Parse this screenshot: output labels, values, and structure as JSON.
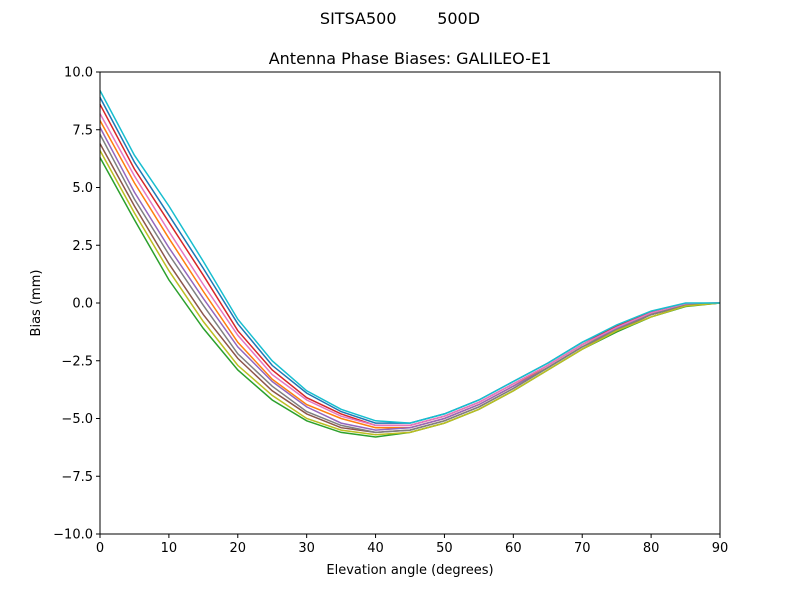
{
  "chart_data": {
    "type": "line",
    "suptitle": "SITSA500        500D",
    "title": "Antenna Phase Biases: GALILEO-E1",
    "xlabel": "Elevation angle (degrees)",
    "ylabel": "Bias (mm)",
    "xlim": [
      0,
      90
    ],
    "ylim": [
      -10,
      10
    ],
    "grid": false,
    "xticks": [
      0,
      10,
      20,
      30,
      40,
      50,
      60,
      70,
      80,
      90
    ],
    "xtick_labels": [
      "0",
      "10",
      "20",
      "30",
      "40",
      "50",
      "60",
      "70",
      "80",
      "90"
    ],
    "yticks": [
      -10,
      -7.5,
      -5,
      -2.5,
      0,
      2.5,
      5,
      7.5,
      10
    ],
    "ytick_labels": [
      "−10.0",
      "−7.5",
      "−5.0",
      "−2.5",
      "0.0",
      "2.5",
      "5.0",
      "7.5",
      "10.0"
    ],
    "x": [
      0,
      5,
      10,
      15,
      20,
      25,
      30,
      35,
      40,
      45,
      50,
      55,
      60,
      65,
      70,
      75,
      80,
      85,
      90
    ],
    "colors": [
      "#1f77b4",
      "#ff7f0e",
      "#2ca02c",
      "#d62728",
      "#9467bd",
      "#8c564b",
      "#e377c2",
      "#7f7f7f",
      "#bcbd22",
      "#17becf"
    ],
    "series": [
      {
        "values": [
          8.9,
          6.1,
          3.8,
          1.5,
          -0.9,
          -2.7,
          -3.9,
          -4.7,
          -5.2,
          -5.2,
          -4.8,
          -4.2,
          -3.4,
          -2.6,
          -1.7,
          -1.0,
          -0.38,
          -0.02,
          0
        ]
      },
      {
        "values": [
          7.9,
          5.2,
          2.8,
          0.5,
          -1.7,
          -3.3,
          -4.4,
          -5.0,
          -5.4,
          -5.4,
          -5.0,
          -4.4,
          -3.6,
          -2.7,
          -1.8,
          -1.1,
          -0.46,
          -0.07,
          0
        ]
      },
      {
        "values": [
          6.3,
          3.6,
          1.0,
          -1.1,
          -2.9,
          -4.2,
          -5.1,
          -5.6,
          -5.8,
          -5.6,
          -5.2,
          -4.6,
          -3.8,
          -2.9,
          -2.0,
          -1.25,
          -0.6,
          -0.15,
          0
        ]
      },
      {
        "values": [
          8.6,
          5.8,
          3.5,
          1.2,
          -1.2,
          -2.9,
          -4.1,
          -4.8,
          -5.3,
          -5.3,
          -4.9,
          -4.3,
          -3.5,
          -2.7,
          -1.8,
          -1.0,
          -0.4,
          -0.03,
          0
        ]
      },
      {
        "values": [
          7.6,
          4.8,
          2.4,
          0.2,
          -1.9,
          -3.4,
          -4.5,
          -5.2,
          -5.5,
          -5.4,
          -5.0,
          -4.4,
          -3.6,
          -2.8,
          -1.9,
          -1.1,
          -0.5,
          -0.08,
          0
        ]
      },
      {
        "values": [
          6.9,
          4.2,
          1.7,
          -0.5,
          -2.4,
          -3.8,
          -4.8,
          -5.4,
          -5.6,
          -5.5,
          -5.1,
          -4.5,
          -3.7,
          -2.8,
          -1.9,
          -1.2,
          -0.5,
          -0.12,
          0
        ]
      },
      {
        "values": [
          8.2,
          5.5,
          3.1,
          0.8,
          -1.4,
          -3.1,
          -4.2,
          -4.9,
          -5.3,
          -5.3,
          -4.9,
          -4.3,
          -3.5,
          -2.7,
          -1.8,
          -1.05,
          -0.43,
          -0.05,
          0
        ]
      },
      {
        "values": [
          7.3,
          4.5,
          2.1,
          -0.1,
          -2.2,
          -3.6,
          -4.7,
          -5.3,
          -5.6,
          -5.5,
          -5.1,
          -4.5,
          -3.7,
          -2.8,
          -1.9,
          -1.15,
          -0.5,
          -0.1,
          0
        ]
      },
      {
        "values": [
          6.6,
          3.9,
          1.4,
          -0.8,
          -2.7,
          -4.0,
          -5.0,
          -5.5,
          -5.7,
          -5.6,
          -5.2,
          -4.6,
          -3.8,
          -2.9,
          -2.0,
          -1.2,
          -0.6,
          -0.13,
          0
        ]
      },
      {
        "values": [
          9.2,
          6.4,
          4.2,
          1.8,
          -0.7,
          -2.5,
          -3.8,
          -4.6,
          -5.1,
          -5.2,
          -4.8,
          -4.2,
          -3.4,
          -2.6,
          -1.7,
          -0.95,
          -0.35,
          0,
          0
        ]
      }
    ]
  }
}
